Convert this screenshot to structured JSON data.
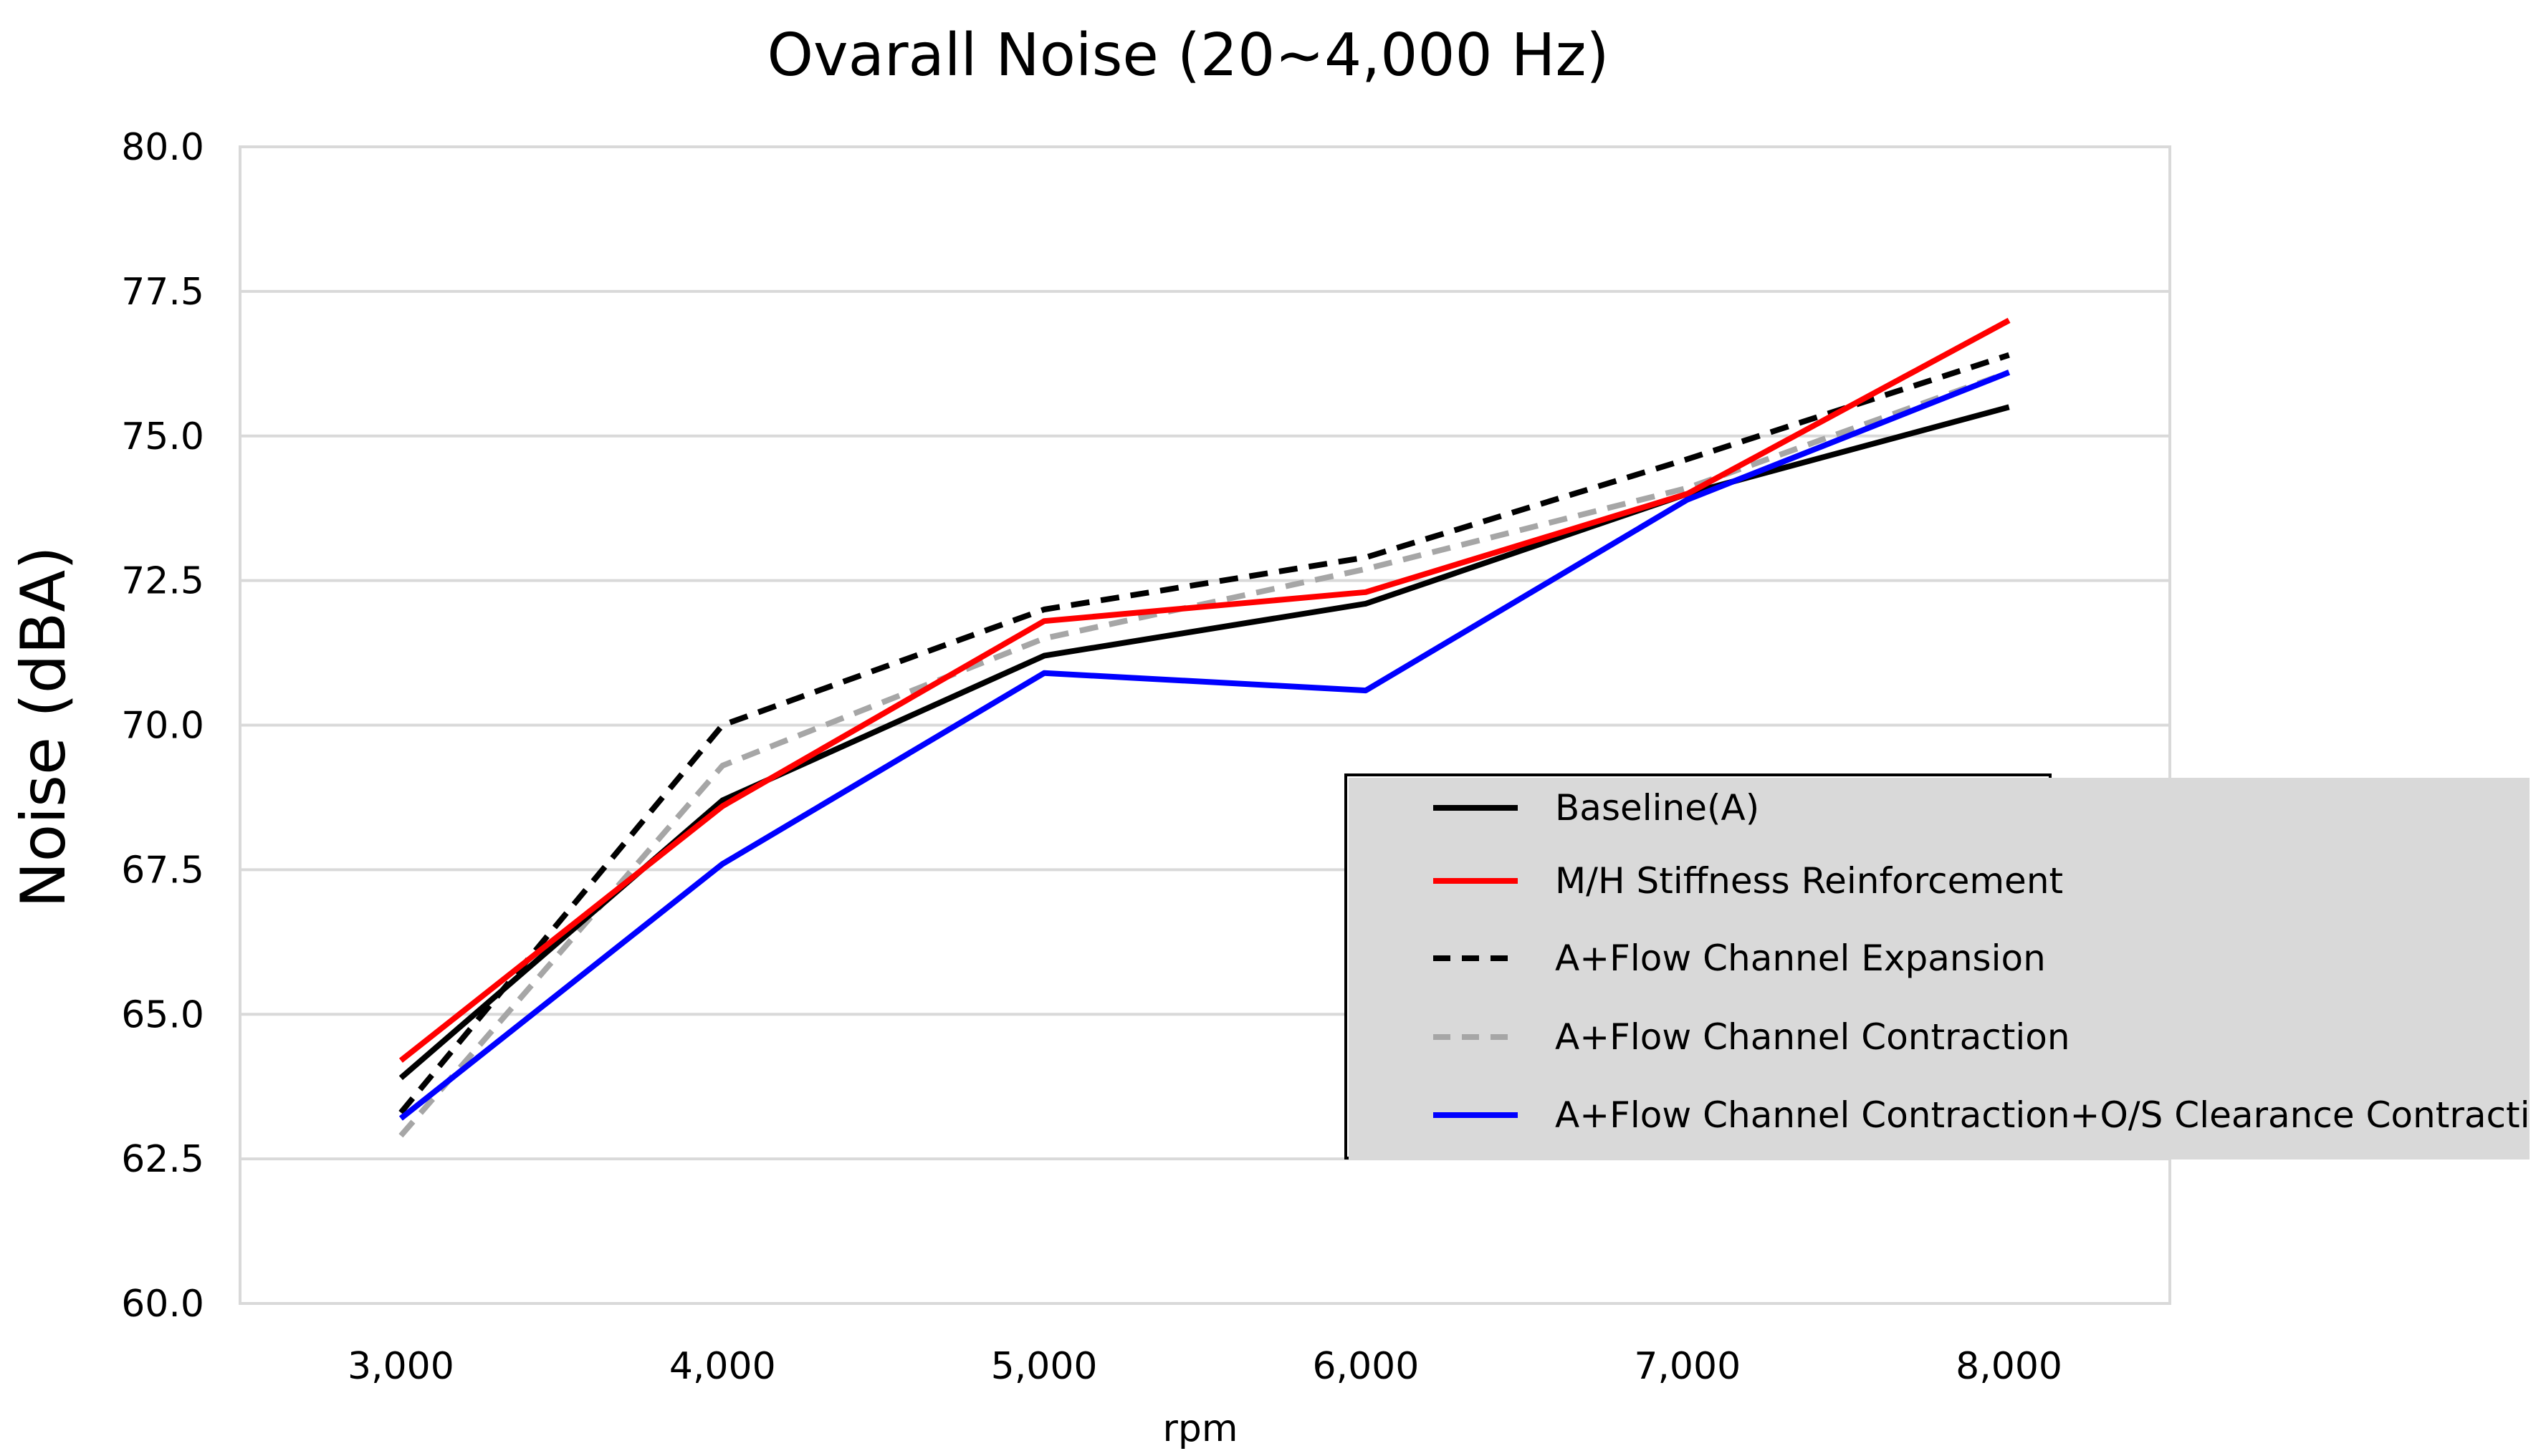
{
  "chart_data": {
    "type": "line",
    "title": "Ovarall Noise (20~4,000 Hz)",
    "xlabel": "rpm",
    "ylabel": "Noise (dBA)",
    "x": [
      3000,
      4000,
      5000,
      6000,
      7000,
      8000
    ],
    "x_tick_labels": [
      "3,000",
      "4,000",
      "5,000",
      "6,000",
      "7,000",
      "8,000"
    ],
    "ylim": [
      60.0,
      80.0
    ],
    "y_ticks": [
      60.0,
      62.5,
      65.0,
      67.5,
      70.0,
      72.5,
      75.0,
      77.5,
      80.0
    ],
    "y_tick_labels": [
      "60.0",
      "62.5",
      "65.0",
      "67.5",
      "70.0",
      "72.5",
      "75.0",
      "77.5",
      "80.0"
    ],
    "grid": "horizontal",
    "legend_position": "right",
    "series": [
      {
        "name": "Baseline(A)",
        "color": "#000000",
        "dash": "solid",
        "values": [
          63.9,
          68.7,
          71.2,
          72.1,
          74.0,
          75.5
        ]
      },
      {
        "name": "M/H Stiffness Reinforcement",
        "color": "#ff0000",
        "dash": "solid",
        "values": [
          64.2,
          68.6,
          71.8,
          72.3,
          74.0,
          77.0
        ]
      },
      {
        "name": "A+Flow Channel Expansion",
        "color": "#000000",
        "dash": "dashed",
        "values": [
          63.3,
          70.0,
          72.0,
          72.9,
          74.6,
          76.4
        ]
      },
      {
        "name": "A+Flow Channel Contraction",
        "color": "#a6a6a6",
        "dash": "dashed",
        "values": [
          62.9,
          69.3,
          71.5,
          72.7,
          74.1,
          76.1
        ]
      },
      {
        "name": "A+Flow Channel Contraction+O/S Clearance Contraction",
        "color": "#0000ff",
        "dash": "solid",
        "values": [
          63.2,
          67.6,
          70.9,
          70.6,
          73.9,
          76.1
        ]
      }
    ]
  }
}
